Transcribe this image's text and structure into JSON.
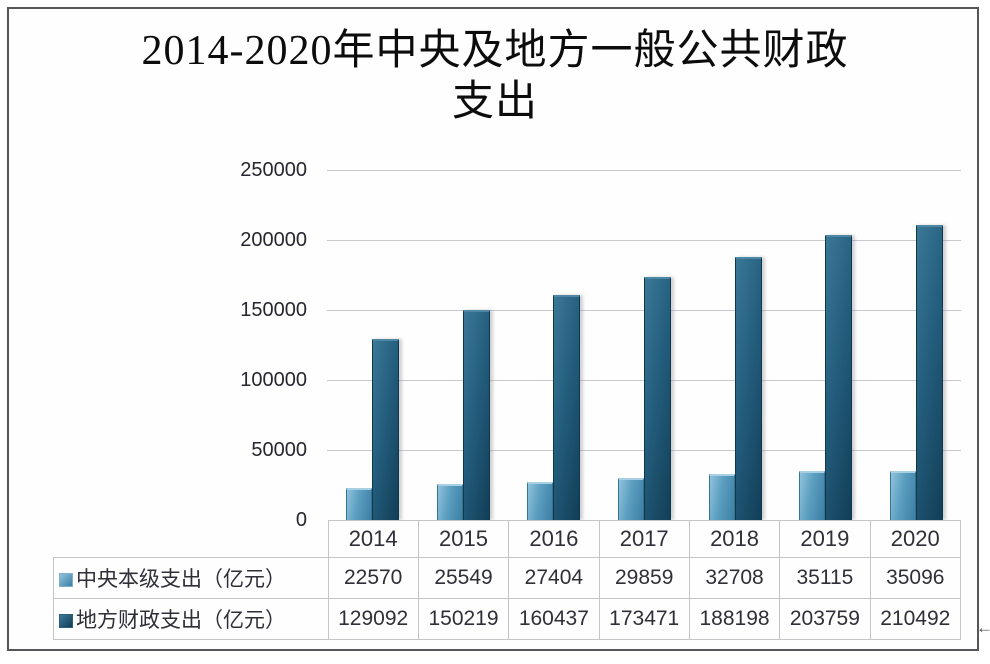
{
  "page": {
    "title_line1": "2014-2020年中央及地方一般公共财政",
    "title_line2": "支出",
    "watermark": "←"
  },
  "chart_data": {
    "type": "bar",
    "title": "2014-2020年中央及地方一般公共财政支出",
    "categories": [
      "2014",
      "2015",
      "2016",
      "2017",
      "2018",
      "2019",
      "2020"
    ],
    "series": [
      {
        "name": "中央本级支出（亿元）",
        "values": [
          22570,
          25549,
          27404,
          29859,
          32708,
          35115,
          35096
        ],
        "color": "#4e93b8"
      },
      {
        "name": "地方财政支出（亿元）",
        "values": [
          129092,
          150219,
          160437,
          173471,
          188198,
          203759,
          210492
        ],
        "color": "#1d5674"
      }
    ],
    "xlabel": "",
    "ylabel": "",
    "ylim": [
      0,
      250000
    ],
    "yticks": [
      0,
      50000,
      100000,
      150000,
      200000,
      250000
    ],
    "grid": "horizontal",
    "legend_position": "data-table-left",
    "colors": {
      "gridline": "#c8c8ce",
      "axis_text": "#26262e",
      "table_border": "#c4c4c9",
      "frame_border": "#55555a"
    }
  }
}
